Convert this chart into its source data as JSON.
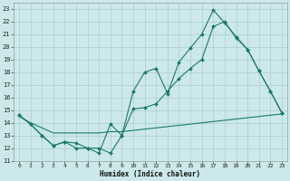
{
  "bg_color": "#cce8ea",
  "grid_color": "#aacdd0",
  "line_color": "#1a7a6e",
  "line_width": 0.8,
  "marker": "D",
  "marker_size": 2.0,
  "xlabel": "Humidex (Indice chaleur)",
  "xlim": [
    -0.5,
    23.5
  ],
  "ylim": [
    11,
    23.5
  ],
  "yticks": [
    11,
    12,
    13,
    14,
    15,
    16,
    17,
    18,
    19,
    20,
    21,
    22,
    23
  ],
  "xticks": [
    0,
    1,
    2,
    3,
    4,
    5,
    6,
    7,
    8,
    9,
    10,
    11,
    12,
    13,
    14,
    15,
    16,
    17,
    18,
    19,
    20,
    21,
    22,
    23
  ],
  "series1_x": [
    0,
    1,
    2,
    3,
    4,
    5,
    6,
    7,
    8,
    9,
    10,
    11,
    12,
    13,
    14,
    15,
    16,
    17,
    18,
    19,
    20,
    21,
    22,
    23
  ],
  "series1_y": [
    14.6,
    13.9,
    13.0,
    12.2,
    12.5,
    12.0,
    12.0,
    11.6,
    13.9,
    13.0,
    16.5,
    18.0,
    18.3,
    16.3,
    18.8,
    19.9,
    21.0,
    22.9,
    21.9,
    20.8,
    19.8,
    18.1,
    16.5,
    14.8
  ],
  "series2_x": [
    0,
    1,
    2,
    3,
    4,
    5,
    6,
    7,
    8,
    9,
    10,
    11,
    12,
    13,
    14,
    15,
    16,
    17,
    18,
    19,
    20,
    21,
    22,
    23
  ],
  "series2_y": [
    14.6,
    13.9,
    13.0,
    12.2,
    12.5,
    12.4,
    12.0,
    12.0,
    11.6,
    13.0,
    15.1,
    15.2,
    15.5,
    16.5,
    17.5,
    18.3,
    19.0,
    21.6,
    22.0,
    20.7,
    19.8,
    18.1,
    16.5,
    14.8
  ],
  "series3_x": [
    0,
    1,
    2,
    3,
    4,
    5,
    6,
    7,
    8,
    9,
    10,
    11,
    12,
    13,
    14,
    15,
    16,
    17,
    18,
    19,
    20,
    21,
    22,
    23
  ],
  "series3_y": [
    14.5,
    14.0,
    13.6,
    13.2,
    13.2,
    13.2,
    13.2,
    13.2,
    13.3,
    13.3,
    13.4,
    13.5,
    13.6,
    13.7,
    13.8,
    13.9,
    14.0,
    14.1,
    14.2,
    14.3,
    14.4,
    14.5,
    14.6,
    14.7
  ]
}
